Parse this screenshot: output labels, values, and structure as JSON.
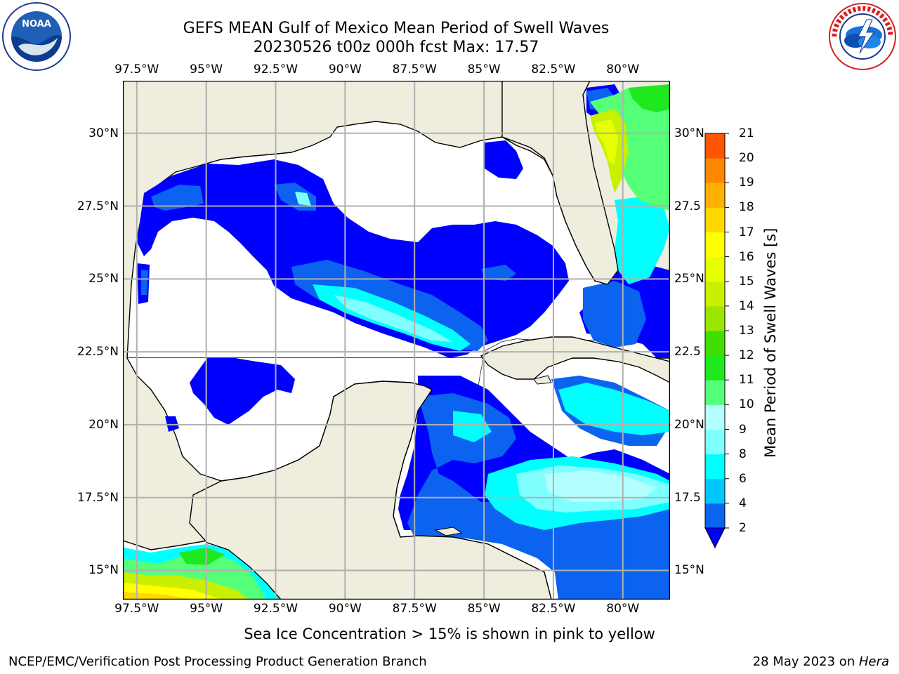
{
  "header": {
    "title": "GEFS MEAN Gulf of Mexico Mean Period of Swell Waves",
    "subtitle": "20230526 t00z 000h fcst   Max: 17.57"
  },
  "logos": {
    "left": {
      "name": "noaa-logo",
      "text": "NOAA",
      "ring_text": "NATIONAL OCEANIC AND ATMOSPHERIC ADMINISTRATION · U.S. DEPARTMENT OF COMMERCE"
    },
    "right": {
      "name": "nws-logo",
      "ring_text": "NATIONAL WEATHER SERVICE"
    }
  },
  "map": {
    "lon_ticks": [
      "97.5°W",
      "95°W",
      "92.5°W",
      "90°W",
      "87.5°W",
      "85°W",
      "82.5°W",
      "80°W"
    ],
    "lat_ticks_left": [
      "30°N",
      "27.5°N",
      "25°N",
      "22.5°N",
      "20°N",
      "17.5°N",
      "15°N"
    ],
    "lat_ticks_right": [
      "30°N",
      "27.5",
      "25°N",
      "22.5",
      "20°N",
      "17.5",
      "15°N"
    ],
    "lon_values": [
      -97.5,
      -95,
      -92.5,
      -90,
      -87.5,
      -85,
      -82.5,
      -80
    ],
    "lat_values": [
      30,
      27.5,
      25,
      22.5,
      20,
      17.5,
      15
    ],
    "lon_range": [
      -98,
      -78.3
    ],
    "lat_range": [
      14,
      31.8
    ],
    "colors": {
      "land": "#efedde",
      "water_missing": "#ffffff",
      "grid": "#b0b0b0"
    }
  },
  "colorbar": {
    "title": "Mean Period of Swell Waves [s]",
    "labels": [
      "2",
      "4",
      "6",
      "8",
      "9",
      "10",
      "11",
      "12",
      "13",
      "14",
      "15",
      "16",
      "17",
      "18",
      "19",
      "20",
      "21"
    ],
    "colors": [
      "#0b63f0",
      "#00c8ff",
      "#00ffff",
      "#80ffff",
      "#b4ffff",
      "#55ff78",
      "#1ee81e",
      "#40dd00",
      "#9be600",
      "#c8f000",
      "#e8ff00",
      "#ffff00",
      "#ffd800",
      "#ffb000",
      "#ff8800",
      "#ff5500",
      "#ff2a00",
      "#ff0000"
    ],
    "extend_color": "#0000ff"
  },
  "footer": {
    "note": "Sea Ice Concentration > 15% is shown in pink to yellow",
    "left": "NCEP/EMC/Verification Post Processing Product Generation Branch",
    "date": "28 May 2023 on ",
    "host": "Hera"
  }
}
